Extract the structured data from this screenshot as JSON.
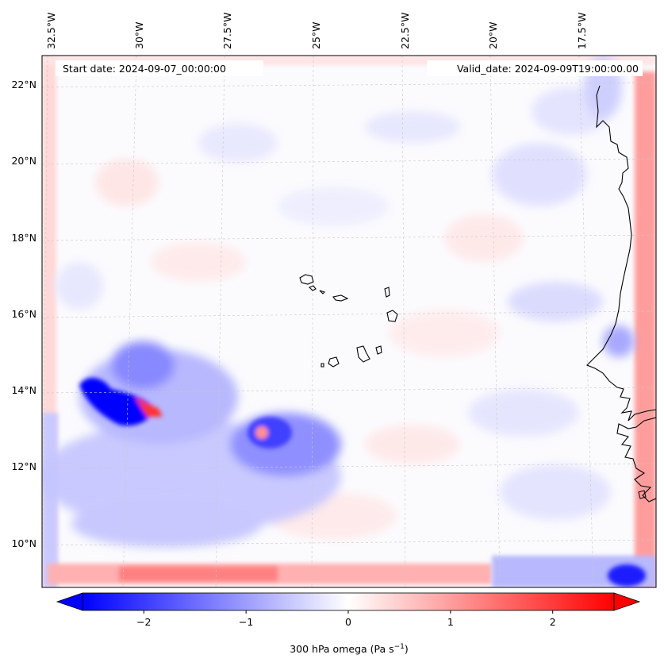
{
  "map": {
    "start_date_label": "Start date: 2024-09-07_00:00:00",
    "valid_date_label": "Valid_date: 2024-09-09T19:00:00.00",
    "lon_ticks": [
      "32.5°W",
      "30°W",
      "27.5°W",
      "25°W",
      "22.5°W",
      "20°W",
      "17.5°W"
    ],
    "lat_ticks": [
      "22°N",
      "20°N",
      "18°N",
      "16°N",
      "14°N",
      "12°N",
      "10°N"
    ],
    "gridlines": true,
    "coastline_color": "#000000",
    "features": [
      "Cape Verde islands",
      "West African coastline"
    ]
  },
  "chart_data": {
    "type": "heatmap",
    "variable": "300 hPa omega",
    "colormap": "bwr",
    "colormap_colors": [
      "#0000ff",
      "#ffffff",
      "#ff0000"
    ],
    "range": [
      -2.6,
      2.6
    ],
    "extend": "both",
    "colorbar": {
      "label": "300 hPa omega (Pa s",
      "label_exponent": "−1",
      "label_suffix": ")",
      "ticks": [
        -2,
        -1,
        0,
        1,
        2
      ],
      "tick_labels": [
        "−2",
        "−1",
        "0",
        "1",
        "2"
      ],
      "orientation": "horizontal",
      "location": "bottom"
    },
    "notable_values": [
      {
        "region": "around 31°W 13.5°N",
        "omega": -2.5
      },
      {
        "region": "around 26°W 12.5°N",
        "omega": -1.5
      },
      {
        "region": "around 17°W 9.5°N",
        "omega": -2.2
      },
      {
        "region": "southern boundary",
        "omega": 1.0
      },
      {
        "region": "eastern boundary",
        "omega": 1.5
      }
    ]
  }
}
